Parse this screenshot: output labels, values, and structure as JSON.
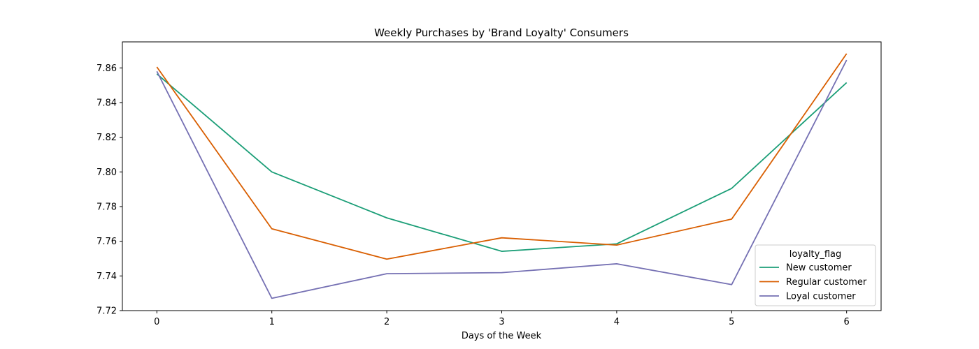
{
  "chart_data": {
    "type": "line",
    "title": "Weekly Purchases by 'Brand Loyalty' Consumers",
    "xlabel": "Days of the Week",
    "ylabel": "",
    "x": [
      0,
      1,
      2,
      3,
      4,
      5,
      6
    ],
    "xlim": [
      -0.3,
      6.3
    ],
    "ylim": [
      7.72,
      7.875
    ],
    "yticks": [
      7.72,
      7.74,
      7.76,
      7.78,
      7.8,
      7.82,
      7.84,
      7.86
    ],
    "ytick_labels": [
      "7.72",
      "7.74",
      "7.76",
      "7.78",
      "7.80",
      "7.82",
      "7.84",
      "7.86"
    ],
    "xtick_labels": [
      "0",
      "1",
      "2",
      "3",
      "4",
      "5",
      "6"
    ],
    "grid": false,
    "legend": {
      "title": "loyalty_flag",
      "placement": "lower-right"
    },
    "series": [
      {
        "name": "New customer",
        "color": "#1b9e77",
        "values": [
          7.8565,
          7.8,
          7.7735,
          7.7542,
          7.7585,
          7.7905,
          7.8515
        ]
      },
      {
        "name": "Regular customer",
        "color": "#d95f02",
        "values": [
          7.8605,
          7.7672,
          7.7497,
          7.762,
          7.7578,
          7.7728,
          7.8682
        ]
      },
      {
        "name": "Loyal customer",
        "color": "#7570b3",
        "values": [
          7.858,
          7.7271,
          7.7413,
          7.7419,
          7.747,
          7.735,
          7.8645
        ]
      }
    ]
  }
}
